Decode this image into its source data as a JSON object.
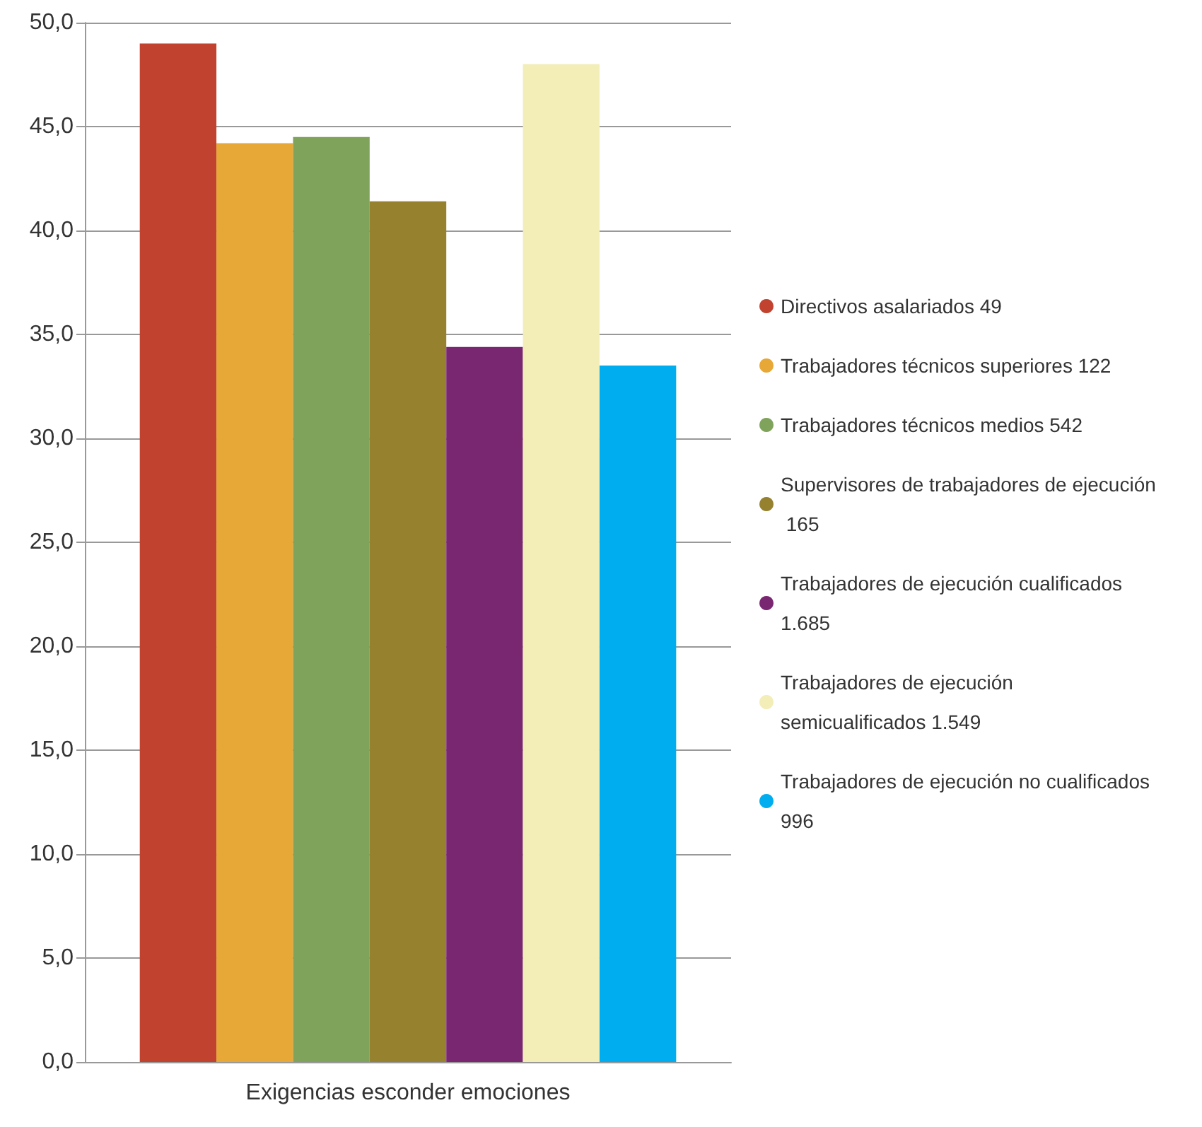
{
  "chart_data": {
    "type": "bar",
    "categories": [
      "Exigencias esconder emociones"
    ],
    "series": [
      {
        "name": "Directivos asalariados 49",
        "color": "#c1432f",
        "values": [
          49.0
        ]
      },
      {
        "name": "Trabajadores técnicos superiores 122",
        "color": "#e8a838",
        "values": [
          44.2
        ]
      },
      {
        "name": "Trabajadores técnicos medios 542",
        "color": "#80a35c",
        "values": [
          44.5
        ]
      },
      {
        "name": "Supervisores de trabajadores de ejecución 165",
        "color": "#95812e",
        "values": [
          41.4
        ]
      },
      {
        "name": "Trabajadores de ejecución cualificados 1.685",
        "color": "#7a2771",
        "values": [
          34.4
        ]
      },
      {
        "name": "Trabajadores de ejecución semicualificados 1.549",
        "color": "#f3edb8",
        "values": [
          48.0
        ]
      },
      {
        "name": "Trabajadores de ejecución no cualificados 996",
        "color": "#00adef",
        "values": [
          33.5
        ]
      }
    ],
    "ylim": [
      0,
      50
    ],
    "yticks": [
      {
        "value": 0,
        "label": "0,0"
      },
      {
        "value": 5,
        "label": "5,0"
      },
      {
        "value": 10,
        "label": "10,0"
      },
      {
        "value": 15,
        "label": "15,0"
      },
      {
        "value": 20,
        "label": "20,0"
      },
      {
        "value": 25,
        "label": "25,0"
      },
      {
        "value": 30,
        "label": "30,0"
      },
      {
        "value": 35,
        "label": "35,0"
      },
      {
        "value": 40,
        "label": "40,0"
      },
      {
        "value": 45,
        "label": "45,0"
      },
      {
        "value": 50,
        "label": "50,0"
      }
    ],
    "grid": "y",
    "legend": "right"
  }
}
